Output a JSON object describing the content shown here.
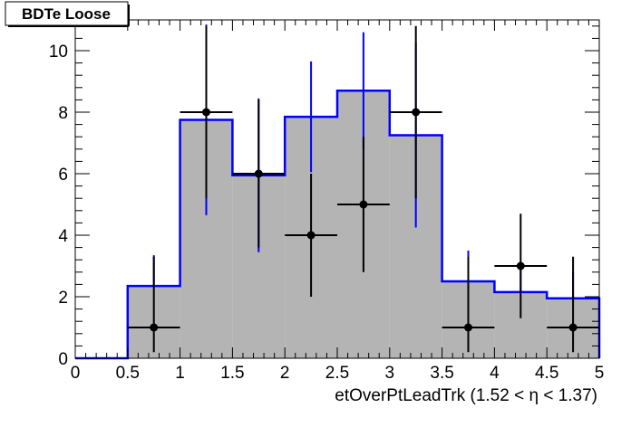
{
  "chart_data": {
    "type": "histogram",
    "title": "BDTe Loose",
    "xlabel": "etOverPtLeadTrk (1.52 <   η < 1.37)",
    "ylabel": "",
    "xlim": [
      0,
      5
    ],
    "ylim": [
      0,
      11
    ],
    "x_ticks": [
      0,
      0.5,
      1,
      1.5,
      2,
      2.5,
      3,
      3.5,
      4,
      4.5,
      5
    ],
    "x_tick_labels": [
      "0",
      "0.5",
      "1",
      "1.5",
      "2",
      "2.5",
      "3",
      "3.5",
      "4",
      "4.5",
      "5"
    ],
    "y_ticks": [
      0,
      2,
      4,
      6,
      8,
      10
    ],
    "y_tick_labels": [
      "0",
      "2",
      "4",
      "6",
      "8",
      "10"
    ],
    "bin_edges": [
      0,
      0.5,
      1,
      1.5,
      2,
      2.5,
      3,
      3.5,
      4,
      4.5,
      5
    ],
    "series": [
      {
        "kind": "filled-histogram",
        "values": [
          0,
          2.35,
          7.75,
          5.95,
          7.85,
          8.7,
          7.25,
          2.5,
          2.15,
          1.95
        ],
        "error_up": [
          0,
          1.0,
          3.1,
          2.5,
          1.8,
          1.9,
          3.0,
          1.0,
          0.9,
          0.85
        ],
        "error_down": [
          0,
          0,
          3.1,
          2.5,
          1.8,
          1.9,
          3.0,
          0,
          0,
          0
        ],
        "fill_color": "#b4b4b4",
        "line_color": "#0000ff"
      },
      {
        "kind": "data-points",
        "x": [
          0.75,
          1.25,
          1.75,
          2.25,
          2.75,
          3.25,
          3.75,
          4.25,
          4.75
        ],
        "values": [
          1,
          8,
          6,
          4,
          5,
          8,
          1,
          3,
          1
        ],
        "error_up": [
          2.3,
          2.8,
          2.4,
          2.0,
          2.2,
          2.8,
          2.3,
          1.7,
          2.3
        ],
        "error_down": [
          0.8,
          2.8,
          2.4,
          2.0,
          2.2,
          2.8,
          0.8,
          1.7,
          0.8
        ],
        "x_half_width": 0.25,
        "color": "#000000"
      }
    ]
  }
}
